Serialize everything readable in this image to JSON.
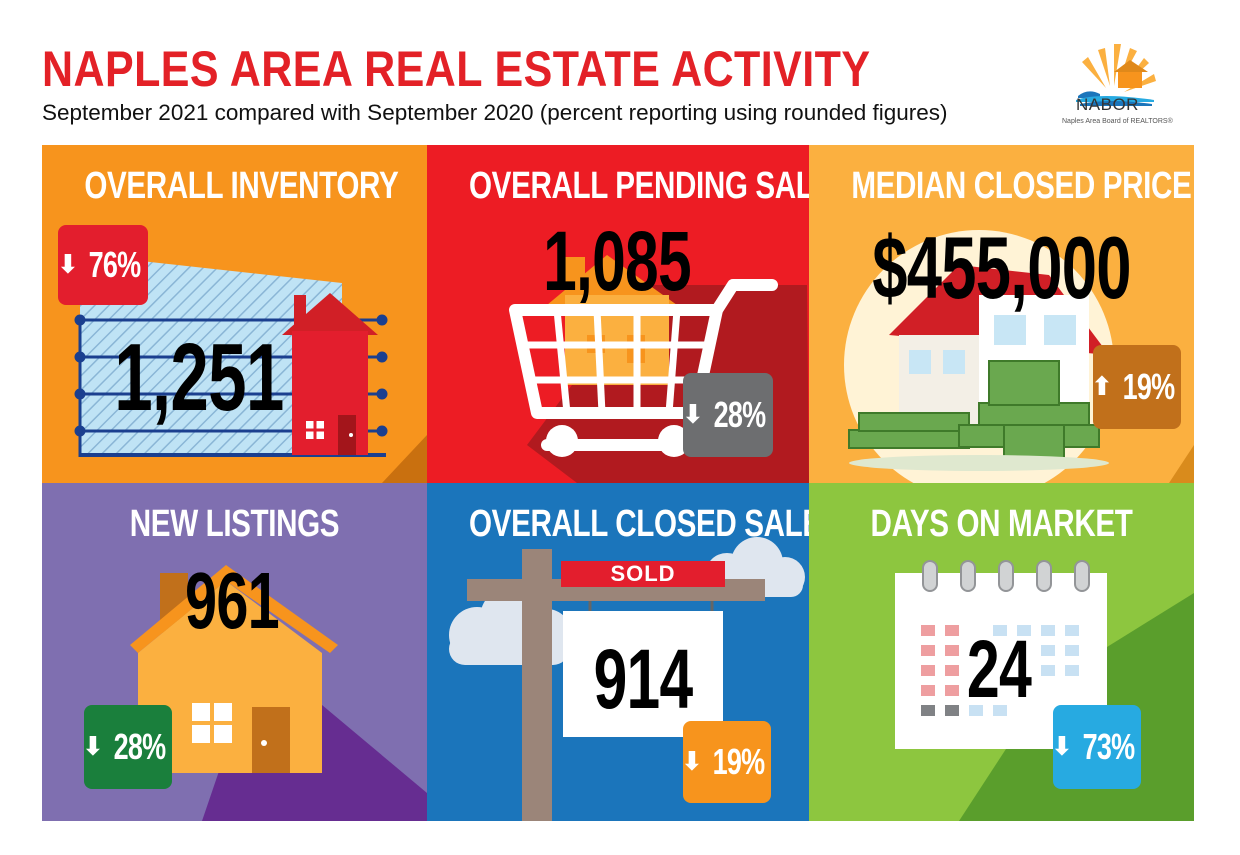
{
  "header": {
    "title": "NAPLES AREA REAL ESTATE ACTIVITY",
    "subtitle": "September 2021 compared with September 2020 (percent reporting using rounded figures)"
  },
  "logo": {
    "name": "NABOR",
    "tagline": "Naples Area Board of REALTORS®"
  },
  "panels": {
    "inventory": {
      "title": "OVERALL INVENTORY",
      "value": "1,251",
      "arrow": "⬇",
      "change": "76%",
      "direction": "down",
      "color": "#f7941d",
      "badge_color": "#e31e2d"
    },
    "pending": {
      "title": "OVERALL PENDING SALES",
      "value": "1,085",
      "arrow": "⬇",
      "change": "28%",
      "direction": "down",
      "color": "#ed1c24",
      "badge_color": "#6d6e70"
    },
    "median_price": {
      "title": "MEDIAN CLOSED PRICE",
      "value": "$455,000",
      "arrow": "⬆",
      "change": "19%",
      "direction": "up",
      "color": "#fbb040",
      "badge_color": "#c1701b"
    },
    "new_listings": {
      "title": "NEW LISTINGS",
      "value": "961",
      "arrow": "⬇",
      "change": "28%",
      "direction": "down",
      "color": "#7f6fb0",
      "badge_color": "#1a7f3c"
    },
    "closed_sales": {
      "title": "OVERALL CLOSED SALES",
      "value": "914",
      "arrow": "⬇",
      "change": "19%",
      "direction": "down",
      "color": "#1b75bb",
      "badge_color": "#f7941d",
      "sign_text": "SOLD"
    },
    "days_on_market": {
      "title": "DAYS ON MARKET",
      "value": "24",
      "arrow": "⬇",
      "change": "73%",
      "direction": "down",
      "color": "#8dc63f",
      "badge_color": "#27aae1"
    }
  }
}
